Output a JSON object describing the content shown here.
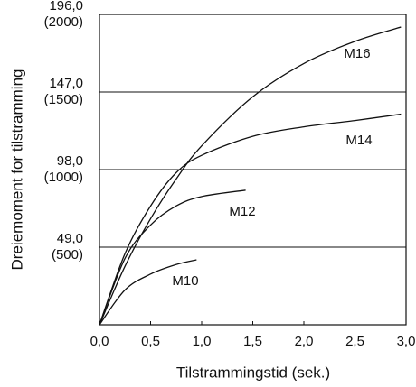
{
  "chart_data": {
    "type": "line",
    "y_label": "Dreiemoment for tilstramming",
    "x_label": "Tilstrammingstid (sek.)",
    "xlim": [
      0,
      3.0
    ],
    "xticks": [
      {
        "value": 0,
        "label": "0,0"
      },
      {
        "value": 0.5,
        "label": "0,5"
      },
      {
        "value": 1.0,
        "label": "1,0"
      },
      {
        "value": 1.5,
        "label": "1,5"
      },
      {
        "value": 2.0,
        "label": "2,0"
      },
      {
        "value": 2.5,
        "label": "2,5"
      },
      {
        "value": 3.0,
        "label": "3,0"
      }
    ],
    "ylim": [
      0,
      196
    ],
    "yticks": [
      {
        "value": 49,
        "label": "49,0",
        "label2": "(500)"
      },
      {
        "value": 98,
        "label": "98,0",
        "label2": "(1000)"
      },
      {
        "value": 147,
        "label": "147,0",
        "label2": "(1500)"
      },
      {
        "value": 196,
        "label": "196,0",
        "label2": "(2000)"
      }
    ],
    "grid": true,
    "series": [
      {
        "name": "M16",
        "color": "#111111",
        "x": [
          0,
          0.25,
          0.5,
          0.75,
          1.0,
          1.5,
          2.0,
          2.5,
          2.95
        ],
        "values": [
          0,
          37,
          67,
          92,
          113,
          144,
          165,
          179,
          188
        ]
      },
      {
        "name": "M14",
        "color": "#111111",
        "x": [
          0,
          0.25,
          0.5,
          0.75,
          1.0,
          1.5,
          2.0,
          2.5,
          2.95
        ],
        "values": [
          0,
          45,
          75,
          96,
          107,
          119,
          125,
          129,
          133
        ]
      },
      {
        "name": "M12",
        "color": "#111111",
        "x": [
          0,
          0.25,
          0.5,
          0.75,
          1.0,
          1.43
        ],
        "values": [
          0,
          42,
          63,
          75,
          81,
          85
        ]
      },
      {
        "name": "M10",
        "color": "#111111",
        "x": [
          0,
          0.25,
          0.5,
          0.75,
          0.95
        ],
        "values": [
          0,
          22,
          32,
          38,
          41
        ]
      }
    ]
  }
}
